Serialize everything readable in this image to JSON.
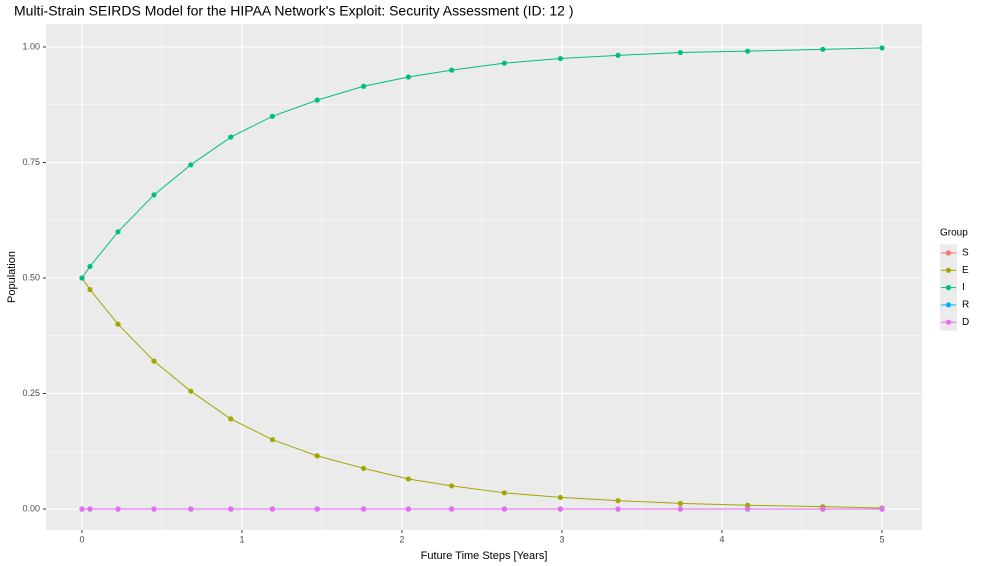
{
  "chart_data": {
    "type": "line",
    "title": "Multi-Strain SEIRDS Model for the HIPAA Network's Exploit: Security Assessment (ID: 12 )",
    "x_label": "Future Time Steps [Years]",
    "y_label": "Population",
    "legend_title": "Group",
    "legend_position": "right",
    "grid": true,
    "x": [
      0,
      0.05,
      0.225,
      0.45,
      0.68,
      0.93,
      1.19,
      1.47,
      1.76,
      2.04,
      2.31,
      2.64,
      2.99,
      3.35,
      3.74,
      4.16,
      4.63,
      5.0
    ],
    "series": [
      {
        "name": "S",
        "color": "#F8766D",
        "values": [
          0,
          0,
          0,
          0,
          0,
          0,
          0,
          0,
          0,
          0,
          0,
          0,
          0,
          0,
          0,
          0,
          0,
          0
        ]
      },
      {
        "name": "E",
        "color": "#A3A500",
        "values": [
          0.5,
          0.475,
          0.4,
          0.32,
          0.255,
          0.195,
          0.15,
          0.115,
          0.088,
          0.065,
          0.05,
          0.035,
          0.025,
          0.018,
          0.012,
          0.008,
          0.005,
          0.002
        ]
      },
      {
        "name": "I",
        "color": "#00BF7D",
        "values": [
          0.5,
          0.525,
          0.6,
          0.68,
          0.745,
          0.805,
          0.85,
          0.885,
          0.915,
          0.935,
          0.95,
          0.965,
          0.975,
          0.982,
          0.988,
          0.991,
          0.995,
          0.998
        ]
      },
      {
        "name": "R",
        "color": "#00B0F6",
        "values": [
          0,
          0,
          0,
          0,
          0,
          0,
          0,
          0,
          0,
          0,
          0,
          0,
          0,
          0,
          0,
          0,
          0,
          0
        ]
      },
      {
        "name": "D",
        "color": "#E76BF3",
        "values": [
          0,
          0,
          0,
          0,
          0,
          0,
          0,
          0,
          0,
          0,
          0,
          0,
          0,
          0,
          0,
          0,
          0,
          0
        ]
      }
    ],
    "xlim": [
      -0.225,
      5.25
    ],
    "ylim": [
      -0.0455,
      1.0498
    ],
    "xticks": [
      0,
      1,
      2,
      3,
      4,
      5
    ],
    "yticks": [
      {
        "value": 0,
        "label": "0.00"
      },
      {
        "value": 0.25,
        "label": "0.25"
      },
      {
        "value": 0.5,
        "label": "0.50"
      },
      {
        "value": 0.75,
        "label": "0.75"
      },
      {
        "value": 1,
        "label": "1.00"
      }
    ]
  }
}
